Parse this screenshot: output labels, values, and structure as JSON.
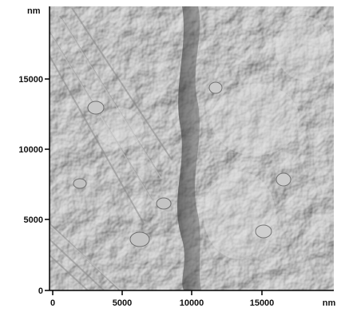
{
  "image": {
    "y_unit": "nm",
    "x_unit": "nm",
    "y_ticks": [
      "15000",
      "10000",
      "5000",
      "0"
    ],
    "x_ticks": [
      "0",
      "5000",
      "10000",
      "15000"
    ],
    "colors": {
      "surface_base": "#a6a6a6",
      "axis": "#000000",
      "background": "#ffffff"
    }
  }
}
